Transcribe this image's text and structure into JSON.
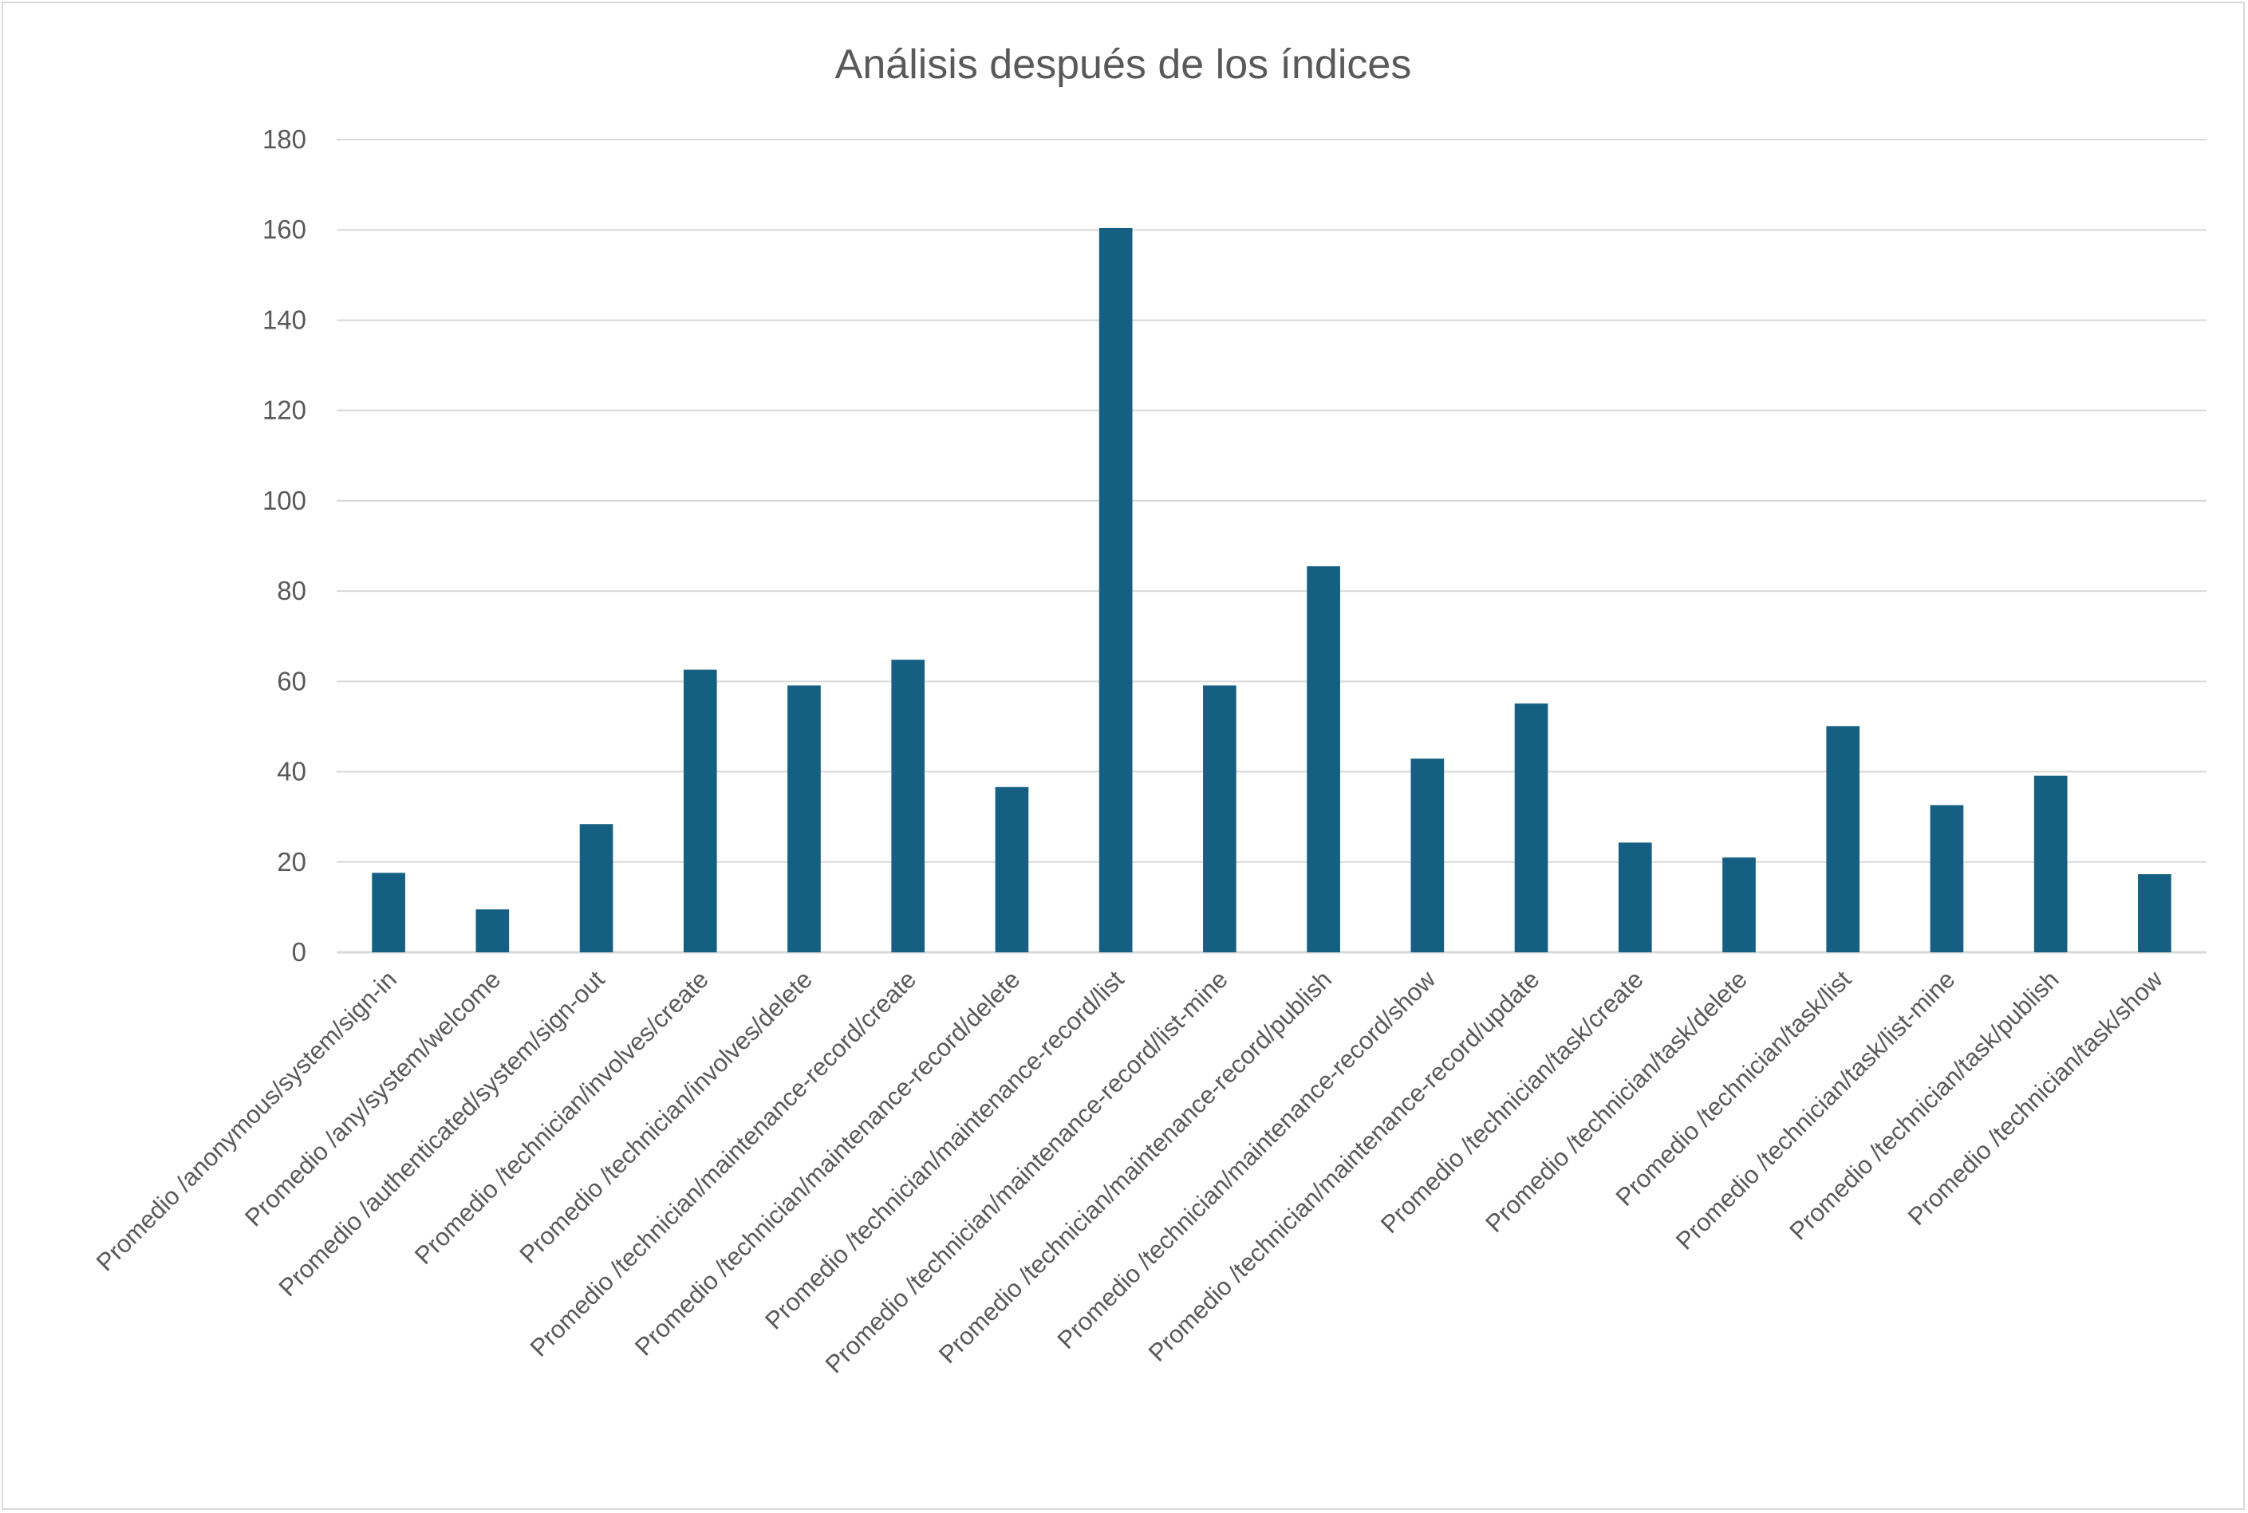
{
  "chart_data": {
    "type": "bar",
    "title": "Análisis después de los índices",
    "xlabel": "",
    "ylabel": "",
    "ylim": [
      0,
      180
    ],
    "y_ticks": [
      0,
      20,
      40,
      60,
      80,
      100,
      120,
      140,
      160,
      180
    ],
    "grid": true,
    "legend": "none",
    "colors": {
      "bar": "#156082",
      "grid": "#d9d9d9",
      "text": "#595959"
    },
    "categories": [
      "Promedio /anonymous/system/sign-in",
      "Promedio /any/system/welcome",
      "Promedio /authenticated/system/sign-out",
      "Promedio /technician/involves/create",
      "Promedio /technician/involves/delete",
      "Promedio /technician/maintenance-record/create",
      "Promedio /technician/maintenance-record/delete",
      "Promedio /technician/maintenance-record/list",
      "Promedio /technician/maintenance-record/list-mine",
      "Promedio /technician/maintenance-record/publish",
      "Promedio /technician/maintenance-record/show",
      "Promedio /technician/maintenance-record/update",
      "Promedio /technician/task/create",
      "Promedio /technician/task/delete",
      "Promedio /technician/task/list",
      "Promedio /technician/task/list-mine",
      "Promedio /technician/task/publish",
      "Promedio /technician/task/show"
    ],
    "values": [
      17.6,
      9.5,
      28.4,
      62.6,
      59.1,
      64.8,
      36.6,
      160.4,
      59.1,
      85.5,
      42.9,
      55.1,
      24.3,
      21.0,
      50.1,
      32.6,
      39.1,
      17.3
    ]
  }
}
